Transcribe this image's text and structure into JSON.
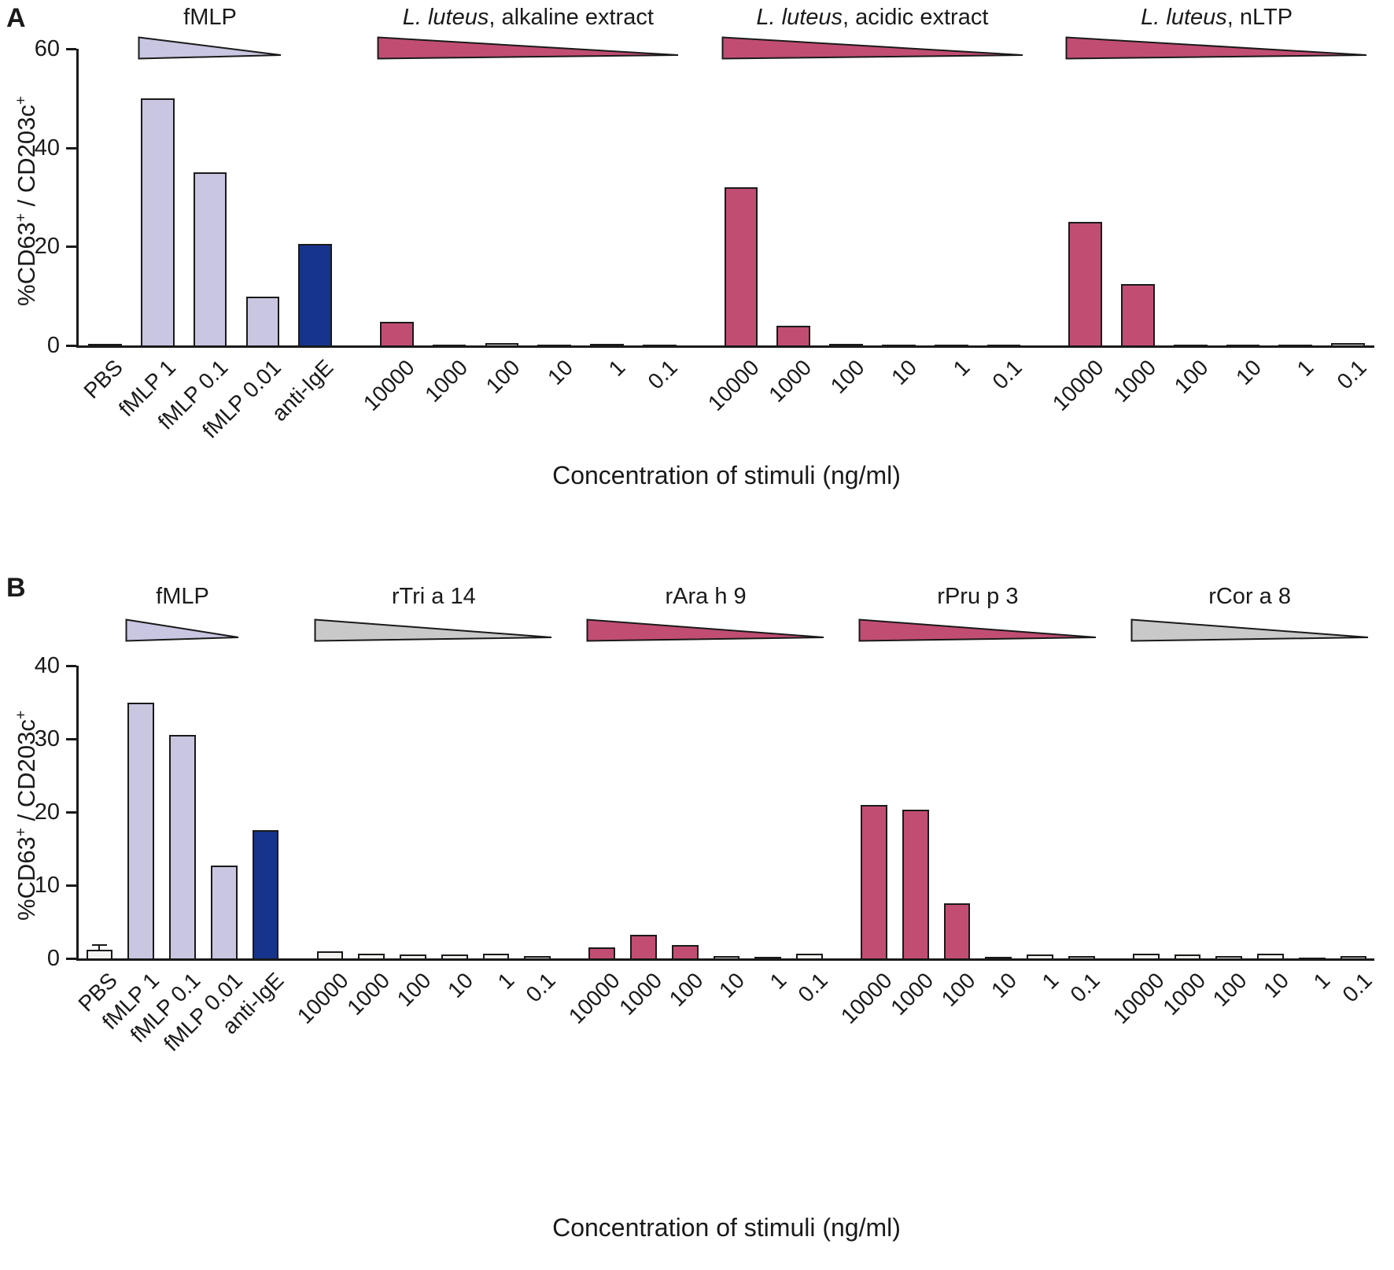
{
  "chart_data": [
    {
      "type": "bar",
      "panel": "A",
      "xlabel": "Concentration of stimuli (ng/ml)",
      "ylabel": "%CD63+ / CD203c+",
      "ylabel_parts": [
        {
          "text": "%CD63"
        },
        {
          "text": "+",
          "sup": true
        },
        {
          "text": " / CD203c"
        },
        {
          "text": "+",
          "sup": true
        }
      ],
      "ylim": [
        0,
        60
      ],
      "yticks": [
        0,
        20,
        40,
        60
      ],
      "grid": false,
      "legend": "none",
      "groups": [
        {
          "name": "controls",
          "header": {
            "label_italic": "",
            "label_rest": "fMLP",
            "triangle_color": "#c8c6e1",
            "triangle_span": [
              1,
              3
            ]
          },
          "bars": [
            {
              "label": "PBS",
              "value": 0.3,
              "color": "#f5f3f0"
            },
            {
              "label": "fMLP 1",
              "value": 50,
              "color": "#c8c6e1"
            },
            {
              "label": "fMLP 0.1",
              "value": 35,
              "color": "#c8c6e1"
            },
            {
              "label": "fMLP 0.01",
              "value": 9.8,
              "color": "#c8c6e1"
            },
            {
              "label": "anti-IgE",
              "value": 20.5,
              "color": "#16348c"
            }
          ]
        },
        {
          "name": "l-luteus-alkaline-extract",
          "header": {
            "label_italic": "L. luteus",
            "label_rest": ", alkaline extract",
            "triangle_color": "#c14e72",
            "triangle_span": [
              0,
              5
            ]
          },
          "bars": [
            {
              "label": "10000",
              "value": 4.8,
              "color": "#c14e72"
            },
            {
              "label": "1000",
              "value": 0.2,
              "color": "#d2d2d2"
            },
            {
              "label": "100",
              "value": 0.5,
              "color": "#d2d2d2"
            },
            {
              "label": "10",
              "value": 0.1,
              "color": "#d2d2d2"
            },
            {
              "label": "1",
              "value": 0.3,
              "color": "#d2d2d2"
            },
            {
              "label": "0.1",
              "value": 0.1,
              "color": "#d2d2d2"
            }
          ]
        },
        {
          "name": "l-luteus-acidic-extract",
          "header": {
            "label_italic": "L. luteus",
            "label_rest": ", acidic extract",
            "triangle_color": "#c14e72",
            "triangle_span": [
              0,
              5
            ]
          },
          "bars": [
            {
              "label": "10000",
              "value": 32,
              "color": "#c14e72"
            },
            {
              "label": "1000",
              "value": 4,
              "color": "#c14e72"
            },
            {
              "label": "100",
              "value": 0.3,
              "color": "#d2d2d2"
            },
            {
              "label": "10",
              "value": 0.1,
              "color": "#d2d2d2"
            },
            {
              "label": "1",
              "value": 0.1,
              "color": "#d2d2d2"
            },
            {
              "label": "0.1",
              "value": 0.1,
              "color": "#d2d2d2"
            }
          ]
        },
        {
          "name": "l-luteus-nltp",
          "header": {
            "label_italic": "L. luteus",
            "label_rest": ", nLTP",
            "triangle_color": "#c14e72",
            "triangle_span": [
              0,
              5
            ]
          },
          "bars": [
            {
              "label": "10000",
              "value": 25,
              "color": "#c14e72"
            },
            {
              "label": "1000",
              "value": 12.5,
              "color": "#c14e72"
            },
            {
              "label": "100",
              "value": 0.2,
              "color": "#d2d2d2"
            },
            {
              "label": "10",
              "value": 0.2,
              "color": "#d2d2d2"
            },
            {
              "label": "1",
              "value": 0.1,
              "color": "#d2d2d2"
            },
            {
              "label": "0.1",
              "value": 0.5,
              "color": "#d2d2d2"
            }
          ]
        }
      ]
    },
    {
      "type": "bar",
      "panel": "B",
      "xlabel": "Concentration of stimuli (ng/ml)",
      "ylabel": "%CD63+ / CD203c+",
      "ylabel_parts": [
        {
          "text": "%CD63"
        },
        {
          "text": "+",
          "sup": true
        },
        {
          "text": " / CD203c"
        },
        {
          "text": "+",
          "sup": true
        }
      ],
      "ylim": [
        0,
        40
      ],
      "yticks": [
        0,
        10,
        20,
        30,
        40
      ],
      "grid": false,
      "legend": "none",
      "groups": [
        {
          "name": "controls",
          "header": {
            "label_italic": "",
            "label_rest": "fMLP",
            "triangle_color": "#c8c6e1",
            "triangle_span": [
              1,
              3
            ]
          },
          "bars": [
            {
              "label": "PBS",
              "value": 1.2,
              "err": 0.6,
              "color": "#f5f3f0"
            },
            {
              "label": "fMLP 1",
              "value": 35,
              "color": "#c8c6e1"
            },
            {
              "label": "fMLP 0.1",
              "value": 30.5,
              "color": "#c8c6e1"
            },
            {
              "label": "fMLP 0.01",
              "value": 12.7,
              "color": "#c8c6e1"
            },
            {
              "label": "anti-IgE",
              "value": 17.5,
              "color": "#16348c"
            }
          ]
        },
        {
          "name": "rtri-a-14",
          "header": {
            "label_italic": "",
            "label_rest": "rTri a 14",
            "triangle_color": "#c9c9c9",
            "triangle_span": [
              0,
              5
            ]
          },
          "bars": [
            {
              "label": "10000",
              "value": 1.0,
              "color": "#f5f3f0"
            },
            {
              "label": "1000",
              "value": 0.6,
              "color": "#f5f3f0"
            },
            {
              "label": "100",
              "value": 0.5,
              "color": "#f5f3f0"
            },
            {
              "label": "10",
              "value": 0.5,
              "color": "#f5f3f0"
            },
            {
              "label": "1",
              "value": 0.6,
              "color": "#f5f3f0"
            },
            {
              "label": "0.1",
              "value": 0.3,
              "color": "#d2d2d2"
            }
          ]
        },
        {
          "name": "rara-h-9",
          "header": {
            "label_italic": "",
            "label_rest": "rAra h 9",
            "triangle_color": "#c14e72",
            "triangle_span": [
              0,
              5
            ]
          },
          "bars": [
            {
              "label": "10000",
              "value": 1.5,
              "color": "#c14e72"
            },
            {
              "label": "1000",
              "value": 3.2,
              "color": "#c14e72"
            },
            {
              "label": "100",
              "value": 1.8,
              "color": "#c14e72"
            },
            {
              "label": "10",
              "value": 0.3,
              "color": "#d2d2d2"
            },
            {
              "label": "1",
              "value": 0.2,
              "color": "#d2d2d2"
            },
            {
              "label": "0.1",
              "value": 0.7,
              "color": "#f5f3f0"
            }
          ]
        },
        {
          "name": "rpru-p-3",
          "header": {
            "label_italic": "",
            "label_rest": "rPru p 3",
            "triangle_color": "#c14e72",
            "triangle_span": [
              0,
              5
            ]
          },
          "bars": [
            {
              "label": "10000",
              "value": 21,
              "color": "#c14e72"
            },
            {
              "label": "1000",
              "value": 20.3,
              "color": "#c14e72"
            },
            {
              "label": "100",
              "value": 7.5,
              "color": "#c14e72"
            },
            {
              "label": "10",
              "value": 0.2,
              "color": "#d2d2d2"
            },
            {
              "label": "1",
              "value": 0.5,
              "color": "#f5f3f0"
            },
            {
              "label": "0.1",
              "value": 0.3,
              "color": "#d2d2d2"
            }
          ]
        },
        {
          "name": "rcor-a-8",
          "header": {
            "label_italic": "",
            "label_rest": "rCor a 8",
            "triangle_color": "#c9c9c9",
            "triangle_span": [
              0,
              5
            ]
          },
          "bars": [
            {
              "label": "10000",
              "value": 0.6,
              "color": "#f5f3f0"
            },
            {
              "label": "1000",
              "value": 0.5,
              "color": "#f5f3f0"
            },
            {
              "label": "100",
              "value": 0.3,
              "color": "#f5f3f0"
            },
            {
              "label": "10",
              "value": 0.6,
              "color": "#f5f3f0"
            },
            {
              "label": "1",
              "value": 0.1,
              "color": "#d2d2d2"
            },
            {
              "label": "0.1",
              "value": 0.3,
              "color": "#d2d2d2"
            }
          ]
        }
      ]
    }
  ],
  "colors": {
    "axis": "#1a1a1a",
    "fmlp_bar": "#c8c6e1",
    "anti_ige_bar": "#16348c",
    "allergen_bar": "#c14e72",
    "neutral_bar": "#f5f3f0",
    "neutral_triangle": "#c9c9c9"
  }
}
